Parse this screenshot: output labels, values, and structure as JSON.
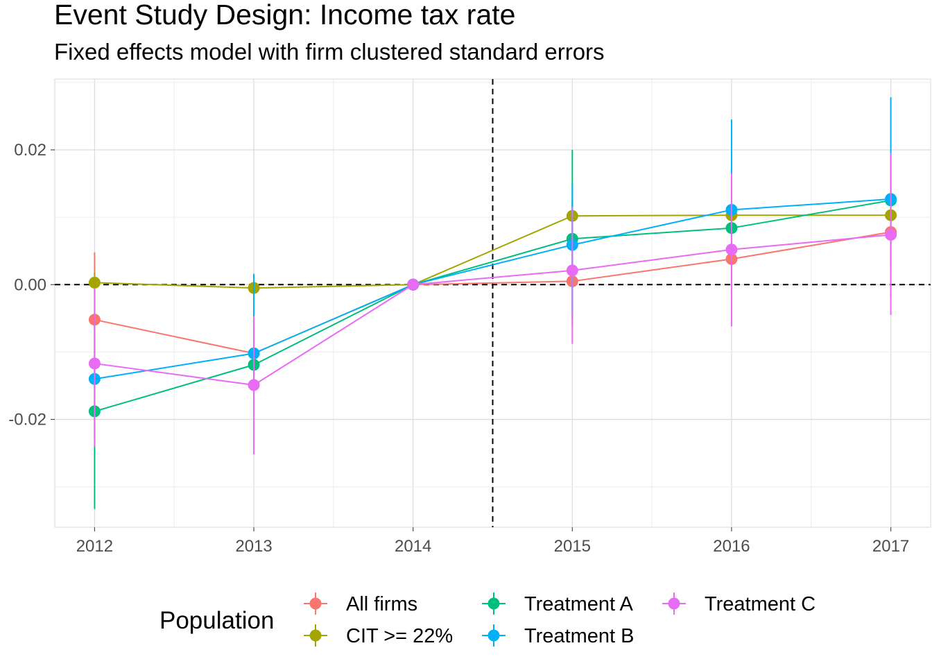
{
  "chart_data": {
    "type": "line",
    "title": "Event Study Design: Income tax rate",
    "subtitle": "Fixed effects model with firm clustered standard errors",
    "x": [
      "2012",
      "2013",
      "2014",
      "2015",
      "2016",
      "2017"
    ],
    "xlim": [
      2011.75,
      2017.25
    ],
    "ylim": [
      -0.036,
      0.0305
    ],
    "y_ticks": [
      {
        "value": 0.02,
        "label": "0.02"
      },
      {
        "value": 0.0,
        "label": "0.00"
      },
      {
        "value": -0.02,
        "label": "-0.02"
      }
    ],
    "reference_lines": {
      "vertical_x": 2014.5,
      "horizontal_y": 0.0,
      "style": "dashed"
    },
    "grid": true,
    "legend": {
      "title": "Population",
      "position": "bottom"
    },
    "series": [
      {
        "name": "All firms",
        "color": "#F8766D",
        "values": [
          -0.0052,
          -0.0102,
          0.0,
          0.0005,
          0.0038,
          0.0078
        ],
        "lower": [
          -0.0152,
          -0.0142,
          0.0,
          -0.006,
          -0.001,
          0.002
        ],
        "upper": [
          0.0048,
          -0.0062,
          0.0,
          0.0125,
          0.0085,
          0.0135
        ]
      },
      {
        "name": "CIT >= 22%",
        "color": "#A3A500",
        "values": [
          0.0003,
          -0.0005,
          0.0,
          0.0102,
          0.0103,
          0.0103
        ],
        "lower": [
          -0.0012,
          -0.0012,
          0.0,
          0.0092,
          0.0093,
          0.0093
        ],
        "upper": [
          0.0018,
          0.0002,
          0.0,
          0.0112,
          0.0113,
          0.0113
        ]
      },
      {
        "name": "Treatment A",
        "color": "#00BF7D",
        "values": [
          -0.0188,
          -0.0119,
          0.0,
          0.0068,
          0.0084,
          0.0125
        ],
        "lower": [
          -0.0333,
          -0.018,
          0.0,
          -0.005,
          0.001,
          0.006
        ],
        "upper": [
          -0.0043,
          -0.0058,
          0.0,
          0.02,
          0.016,
          0.0195
        ]
      },
      {
        "name": "Treatment B",
        "color": "#00B0F6",
        "values": [
          -0.014,
          -0.0102,
          0.0,
          0.0059,
          0.0111,
          0.0127
        ],
        "lower": [
          -0.023,
          -0.016,
          0.0,
          -0.004,
          -0.002,
          -0.002
        ],
        "upper": [
          -0.005,
          0.0016,
          0.0,
          0.015,
          0.0245,
          0.0278
        ]
      },
      {
        "name": "Treatment C",
        "color": "#E76BF3",
        "values": [
          -0.0117,
          -0.0149,
          0.0,
          0.0021,
          0.0052,
          0.0074
        ],
        "lower": [
          -0.024,
          -0.0252,
          0.0,
          -0.0088,
          -0.0062,
          -0.0045
        ],
        "upper": [
          -0.0005,
          -0.0047,
          0.0,
          0.0115,
          0.0165,
          0.0195
        ]
      }
    ]
  }
}
